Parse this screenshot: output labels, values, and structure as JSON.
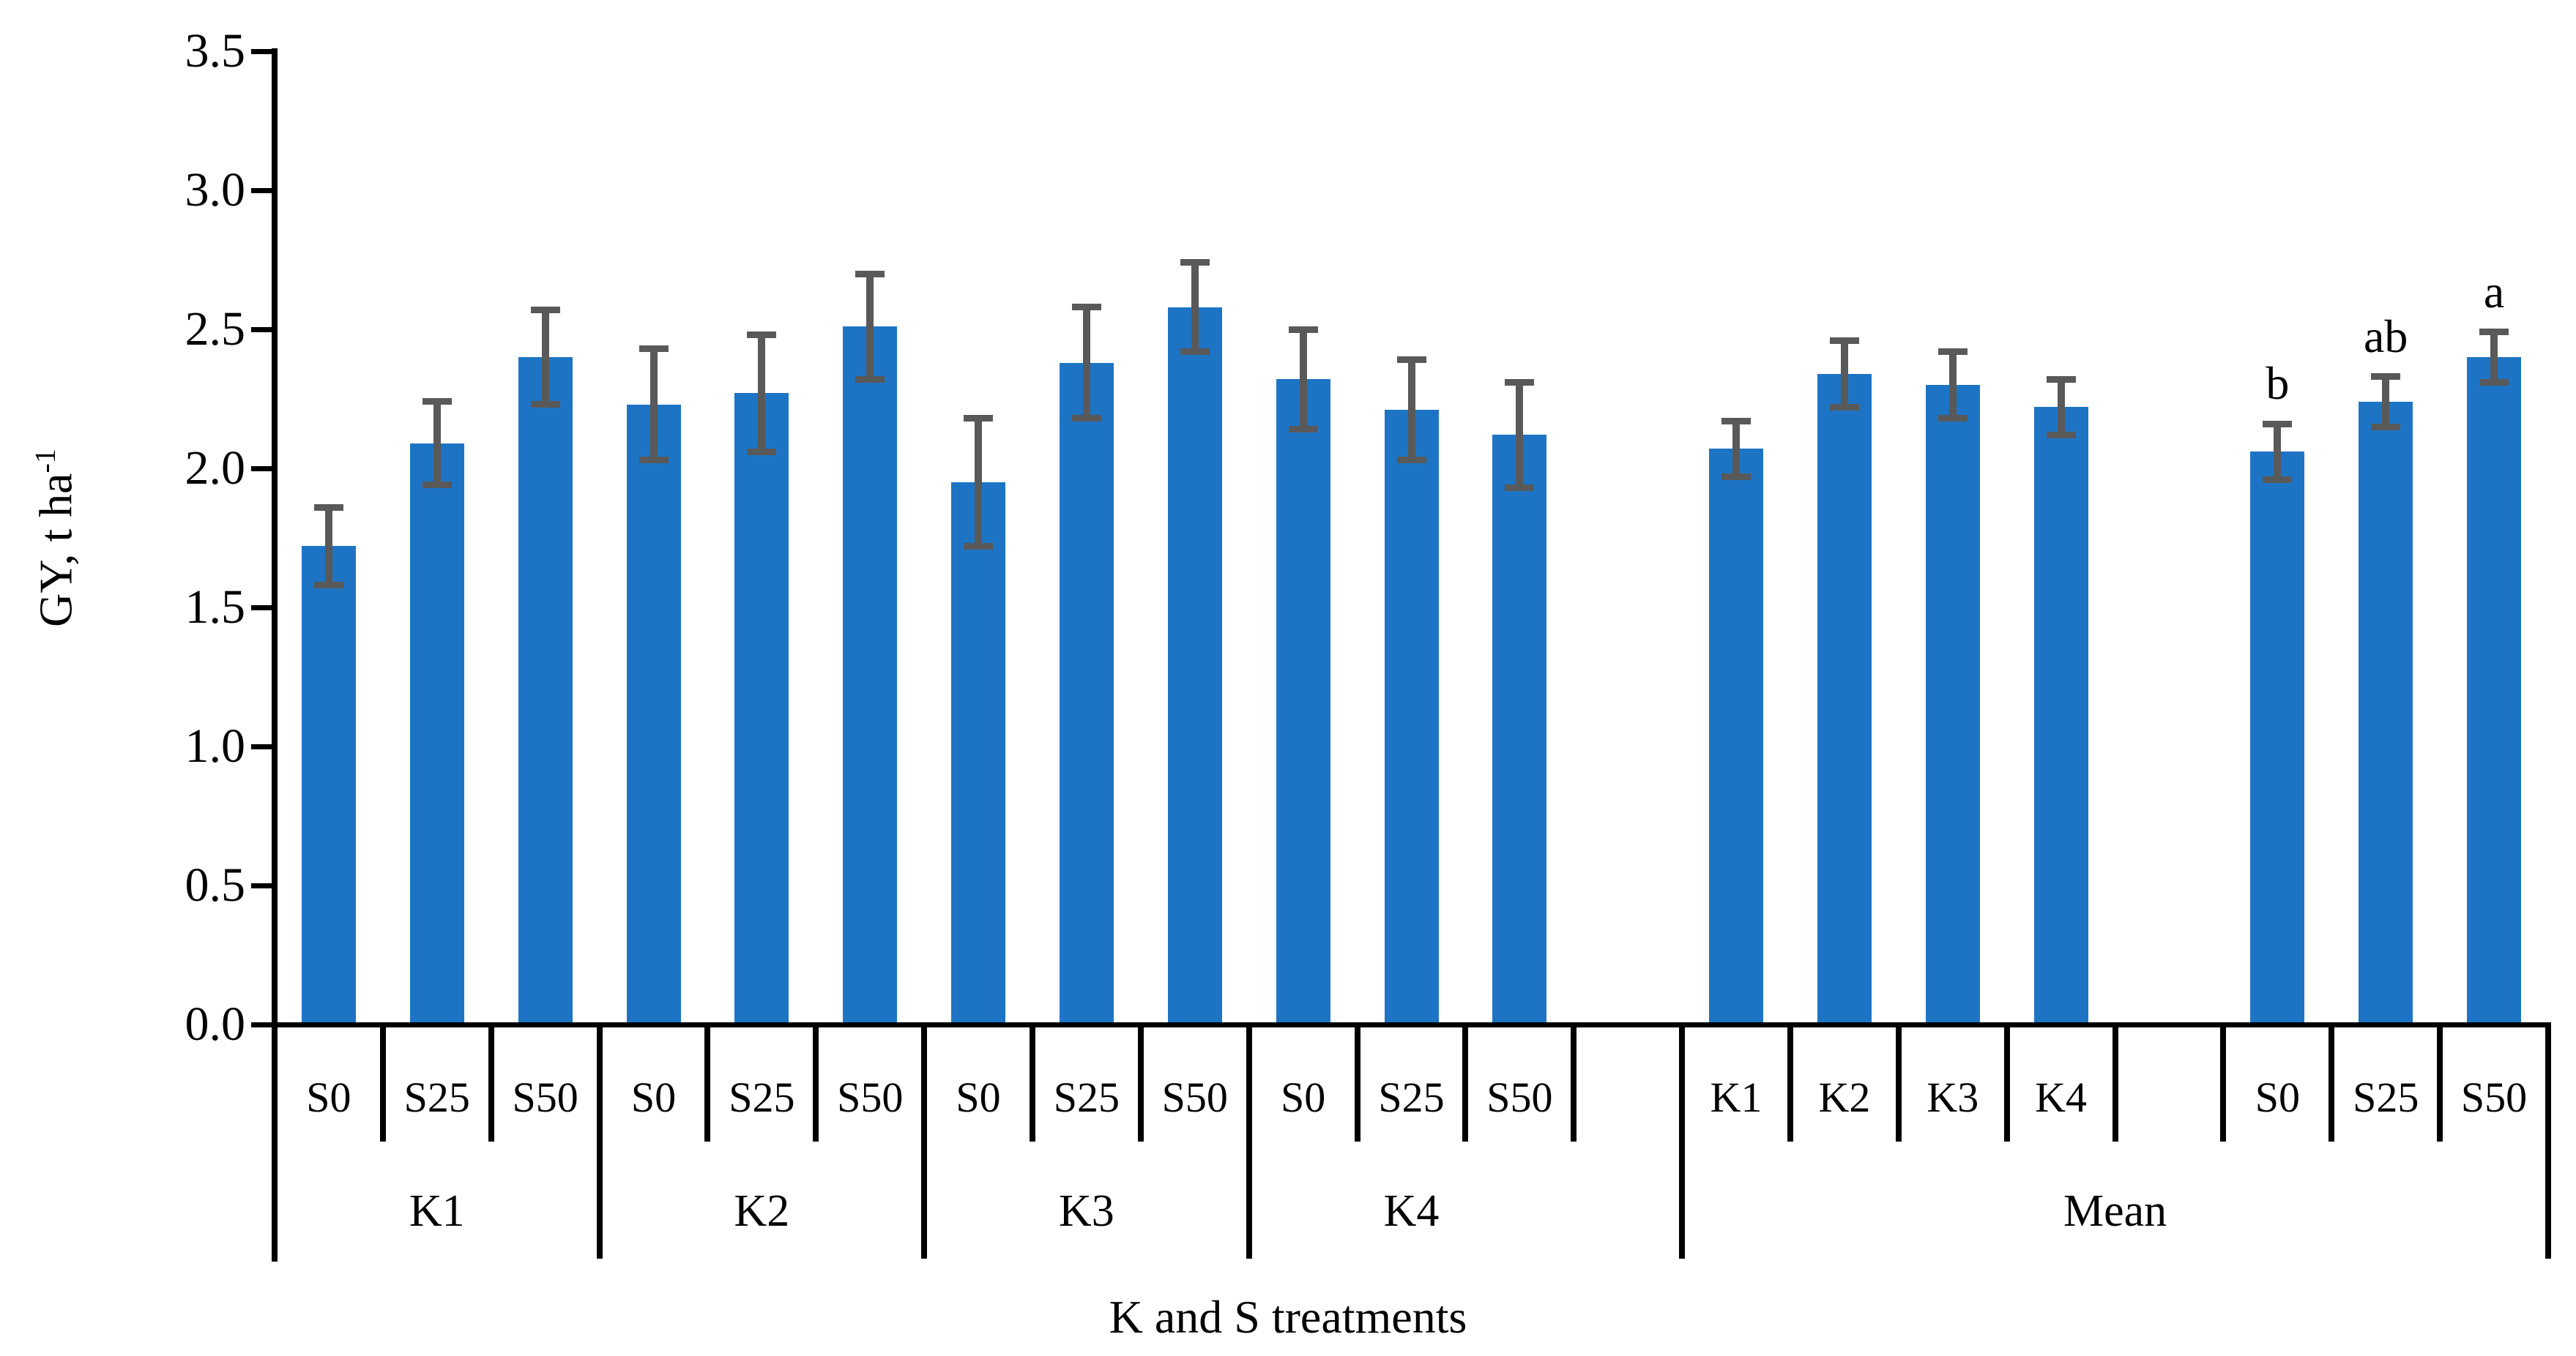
{
  "chart_data": {
    "type": "bar",
    "title": "",
    "y_axis": {
      "label_base": "GY, t ha",
      "label_sup": "-1",
      "ticks": [
        "0.0",
        "0.5",
        "1.0",
        "1.5",
        "2.0",
        "2.5",
        "3.0",
        "3.5"
      ],
      "lim": [
        0,
        3.5
      ],
      "tick_step": 0.5,
      "grid": false
    },
    "x_axis": {
      "title": "K and S treatments"
    },
    "legend": "none",
    "colors": {
      "bar": "#1E74C4",
      "error_bar": "#595959",
      "axis_line": "#000000"
    },
    "groups": [
      {
        "label": "K1",
        "bars": [
          {
            "label": "S0",
            "value": 1.72,
            "err": 0.14
          },
          {
            "label": "S25",
            "value": 2.09,
            "err": 0.15
          },
          {
            "label": "S50",
            "value": 2.4,
            "err": 0.17
          }
        ]
      },
      {
        "label": "K2",
        "bars": [
          {
            "label": "S0",
            "value": 2.23,
            "err": 0.2
          },
          {
            "label": "S25",
            "value": 2.27,
            "err": 0.21
          },
          {
            "label": "S50",
            "value": 2.51,
            "err": 0.19
          }
        ]
      },
      {
        "label": "K3",
        "bars": [
          {
            "label": "S0",
            "value": 1.95,
            "err": 0.23
          },
          {
            "label": "S25",
            "value": 2.38,
            "err": 0.2
          },
          {
            "label": "S50",
            "value": 2.58,
            "err": 0.16
          }
        ]
      },
      {
        "label": "K4",
        "bars": [
          {
            "label": "S0",
            "value": 2.32,
            "err": 0.18
          },
          {
            "label": "S25",
            "value": 2.21,
            "err": 0.18
          },
          {
            "label": "S50",
            "value": 2.12,
            "err": 0.19
          }
        ],
        "trailing_empty_cells": 1
      },
      {
        "label": "Mean",
        "subgroups": [
          {
            "bars": [
              {
                "label": "K1",
                "value": 2.07,
                "err": 0.1
              },
              {
                "label": "K2",
                "value": 2.34,
                "err": 0.12
              },
              {
                "label": "K3",
                "value": 2.3,
                "err": 0.12
              },
              {
                "label": "K4",
                "value": 2.22,
                "err": 0.1
              }
            ]
          },
          {
            "bars": [
              {
                "label": "S0",
                "value": 2.06,
                "err": 0.1,
                "letter": "b"
              },
              {
                "label": "S25",
                "value": 2.24,
                "err": 0.09,
                "letter": "ab"
              },
              {
                "label": "S50",
                "value": 2.4,
                "err": 0.09,
                "letter": "a"
              }
            ]
          }
        ],
        "gap_between_subgroups": 1
      }
    ]
  }
}
